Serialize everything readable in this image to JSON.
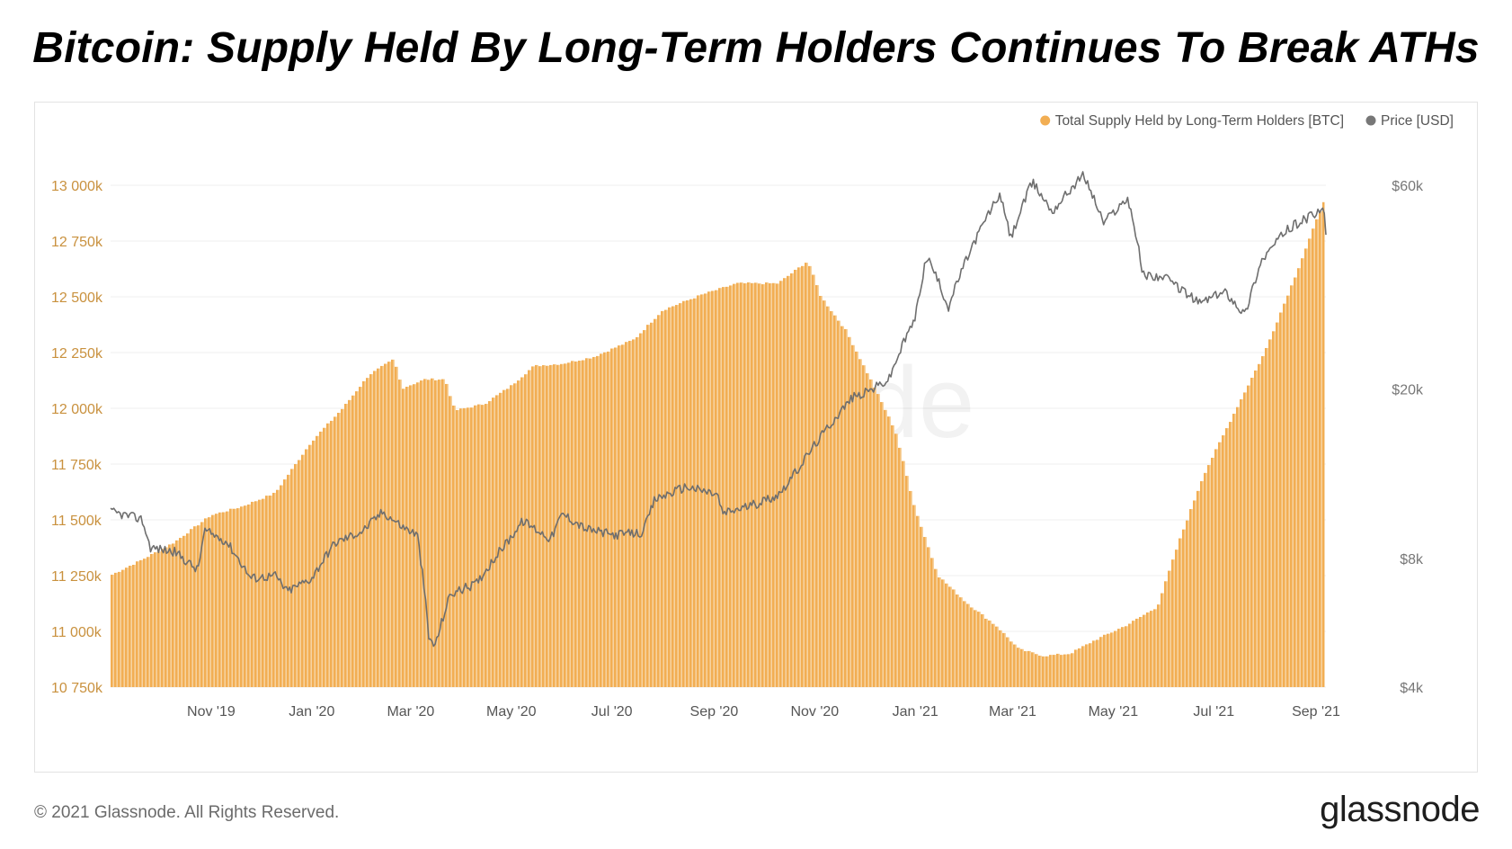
{
  "headline": "Bitcoin: Supply Held By Long-Term Holders Continues To Break ATHs",
  "footer": {
    "copyright": "© 2021 Glassnode. All Rights Reserved.",
    "logo": "glassnode"
  },
  "watermark": "glassnode",
  "colors": {
    "supply": "#F2AE53",
    "supply_light": "#F7D3A0",
    "price": "#6E6E6E",
    "left_axis": "#C9913E",
    "right_axis": "#777777",
    "grid": "#EFEFEF"
  },
  "chart_data": {
    "type": "bar",
    "title": "",
    "legend": [
      {
        "name": "Total Supply Held by Long-Term Holders [BTC]",
        "color": "#F2AE53"
      },
      {
        "name": "Price [USD]",
        "color": "#777777"
      }
    ],
    "legend_position": "top-right",
    "grid": true,
    "x_axis": {
      "range": [
        "2019-09-01",
        "2021-09-07"
      ],
      "tick_labels": [
        "Nov '19",
        "Jan '20",
        "Mar '20",
        "May '20",
        "Jul '20",
        "Sep '20",
        "Nov '20",
        "Jan '21",
        "Mar '21",
        "May '21",
        "Jul '21",
        "Sep '21"
      ],
      "tick_dates": [
        "2019-11-01",
        "2020-01-01",
        "2020-03-01",
        "2020-05-01",
        "2020-07-01",
        "2020-09-01",
        "2020-11-01",
        "2021-01-01",
        "2021-03-01",
        "2021-05-01",
        "2021-07-01",
        "2021-09-01"
      ]
    },
    "y_left": {
      "label": "",
      "unit": "BTC",
      "range": [
        10750000,
        13000000
      ],
      "tick_values": [
        13000000,
        12750000,
        12500000,
        12250000,
        12000000,
        11750000,
        11500000,
        11250000,
        11000000,
        10750000
      ],
      "tick_labels": [
        "13 000k",
        "12 750k",
        "12 500k",
        "12 250k",
        "12 000k",
        "11 750k",
        "11 500k",
        "11 250k",
        "11 000k",
        "10 750k"
      ]
    },
    "y_right": {
      "label": "",
      "unit": "USD",
      "scale": "log",
      "range": [
        4000,
        60000
      ],
      "tick_values": [
        60000,
        20000,
        8000,
        4000
      ],
      "tick_labels": [
        "$60k",
        "$20k",
        "$8k",
        "$4k"
      ]
    },
    "series": [
      {
        "name": "Total Supply Held by Long-Term Holders [BTC]",
        "axis": "left",
        "style": "bar",
        "points": [
          [
            "2019-09-01",
            11250000
          ],
          [
            "2019-09-20",
            11320000
          ],
          [
            "2019-10-10",
            11400000
          ],
          [
            "2019-11-01",
            11520000
          ],
          [
            "2019-11-20",
            11560000
          ],
          [
            "2019-12-10",
            11620000
          ],
          [
            "2020-01-01",
            11850000
          ],
          [
            "2020-01-20",
            12000000
          ],
          [
            "2020-02-05",
            12150000
          ],
          [
            "2020-02-20",
            12220000
          ],
          [
            "2020-02-25",
            12090000
          ],
          [
            "2020-03-10",
            12130000
          ],
          [
            "2020-03-22",
            12130000
          ],
          [
            "2020-03-28",
            11990000
          ],
          [
            "2020-04-15",
            12020000
          ],
          [
            "2020-05-01",
            12100000
          ],
          [
            "2020-05-15",
            12190000
          ],
          [
            "2020-06-01",
            12200000
          ],
          [
            "2020-06-20",
            12230000
          ],
          [
            "2020-07-15",
            12310000
          ],
          [
            "2020-08-01",
            12440000
          ],
          [
            "2020-08-25",
            12510000
          ],
          [
            "2020-09-15",
            12560000
          ],
          [
            "2020-10-10",
            12560000
          ],
          [
            "2020-10-28",
            12660000
          ],
          [
            "2020-11-05",
            12500000
          ],
          [
            "2020-11-20",
            12350000
          ],
          [
            "2020-12-05",
            12130000
          ],
          [
            "2020-12-20",
            11900000
          ],
          [
            "2021-01-01",
            11550000
          ],
          [
            "2021-01-15",
            11250000
          ],
          [
            "2021-02-01",
            11130000
          ],
          [
            "2021-02-20",
            11020000
          ],
          [
            "2021-03-05",
            10920000
          ],
          [
            "2021-03-20",
            10890000
          ],
          [
            "2021-04-05",
            10900000
          ],
          [
            "2021-04-20",
            10960000
          ],
          [
            "2021-05-10",
            11030000
          ],
          [
            "2021-05-28",
            11110000
          ],
          [
            "2021-06-10",
            11400000
          ],
          [
            "2021-06-25",
            11700000
          ],
          [
            "2021-07-15",
            12000000
          ],
          [
            "2021-08-01",
            12250000
          ],
          [
            "2021-08-20",
            12600000
          ],
          [
            "2021-09-07",
            12950000
          ]
        ]
      },
      {
        "name": "Price [USD]",
        "axis": "right",
        "style": "line",
        "points": [
          [
            "2019-09-01",
            10300
          ],
          [
            "2019-09-20",
            9900
          ],
          [
            "2019-09-25",
            8500
          ],
          [
            "2019-10-10",
            8300
          ],
          [
            "2019-10-24",
            7500
          ],
          [
            "2019-10-28",
            9300
          ],
          [
            "2019-11-10",
            8800
          ],
          [
            "2019-11-25",
            7200
          ],
          [
            "2019-12-10",
            7300
          ],
          [
            "2019-12-17",
            6700
          ],
          [
            "2020-01-01",
            7200
          ],
          [
            "2020-01-15",
            8700
          ],
          [
            "2020-02-01",
            9300
          ],
          [
            "2020-02-13",
            10300
          ],
          [
            "2020-02-25",
            9500
          ],
          [
            "2020-03-05",
            9100
          ],
          [
            "2020-03-12",
            5200
          ],
          [
            "2020-03-16",
            5000
          ],
          [
            "2020-03-25",
            6600
          ],
          [
            "2020-04-10",
            7000
          ],
          [
            "2020-04-29",
            8800
          ],
          [
            "2020-05-08",
            9800
          ],
          [
            "2020-05-25",
            8900
          ],
          [
            "2020-06-01",
            10200
          ],
          [
            "2020-06-15",
            9400
          ],
          [
            "2020-07-01",
            9100
          ],
          [
            "2020-07-20",
            9200
          ],
          [
            "2020-07-27",
            11000
          ],
          [
            "2020-08-15",
            11800
          ],
          [
            "2020-09-03",
            11300
          ],
          [
            "2020-09-06",
            10200
          ],
          [
            "2020-09-25",
            10700
          ],
          [
            "2020-10-10",
            11300
          ],
          [
            "2020-10-21",
            12800
          ],
          [
            "2020-11-05",
            15500
          ],
          [
            "2020-11-24",
            19100
          ],
          [
            "2020-12-01",
            19500
          ],
          [
            "2020-12-16",
            21000
          ],
          [
            "2021-01-01",
            29300
          ],
          [
            "2021-01-08",
            41000
          ],
          [
            "2021-01-21",
            31000
          ],
          [
            "2021-02-08",
            46000
          ],
          [
            "2021-02-21",
            57000
          ],
          [
            "2021-02-28",
            45000
          ],
          [
            "2021-03-13",
            61000
          ],
          [
            "2021-03-25",
            52000
          ],
          [
            "2021-04-13",
            63500
          ],
          [
            "2021-04-25",
            49000
          ],
          [
            "2021-05-10",
            56000
          ],
          [
            "2021-05-19",
            37000
          ],
          [
            "2021-06-01",
            36500
          ],
          [
            "2021-06-22",
            31800
          ],
          [
            "2021-07-08",
            33800
          ],
          [
            "2021-07-20",
            29800
          ],
          [
            "2021-07-30",
            40000
          ],
          [
            "2021-08-14",
            47000
          ],
          [
            "2021-08-23",
            49500
          ],
          [
            "2021-09-06",
            52500
          ],
          [
            "2021-09-07",
            46300
          ]
        ]
      }
    ]
  }
}
